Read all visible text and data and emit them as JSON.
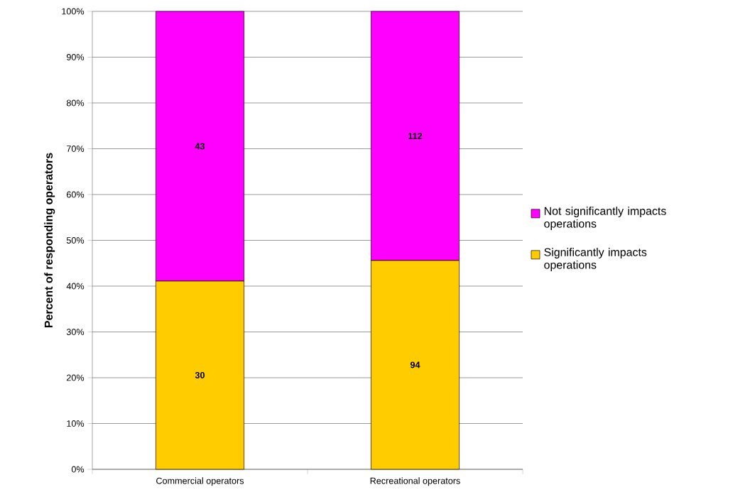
{
  "chart_data": {
    "type": "bar",
    "stacked": true,
    "ylabel": "Percent of responding operators",
    "categories": [
      "Commercial operators",
      "Recreational operators"
    ],
    "series": [
      {
        "name": "Significantly impacts operations",
        "color": "#ffcc00",
        "values": [
          41.1,
          45.6
        ]
      },
      {
        "name": "Not significantly impacts operations",
        "color": "#ff00ff",
        "values": [
          58.9,
          54.4
        ]
      }
    ],
    "annotations": [
      "30",
      "94",
      "43",
      "112"
    ],
    "ylim": [
      0,
      100
    ],
    "yticks": [
      {
        "value": 0,
        "label": "0%"
      },
      {
        "value": 10,
        "label": "10%"
      },
      {
        "value": 20,
        "label": "20%"
      },
      {
        "value": 30,
        "label": "30%"
      },
      {
        "value": 40,
        "label": "40%"
      },
      {
        "value": 50,
        "label": "50%"
      },
      {
        "value": 60,
        "label": "60%"
      },
      {
        "value": 70,
        "label": "70%"
      },
      {
        "value": 80,
        "label": "80%"
      },
      {
        "value": 90,
        "label": "90%"
      },
      {
        "value": 100,
        "label": "100%"
      }
    ],
    "grid": "y",
    "legend": "right"
  }
}
